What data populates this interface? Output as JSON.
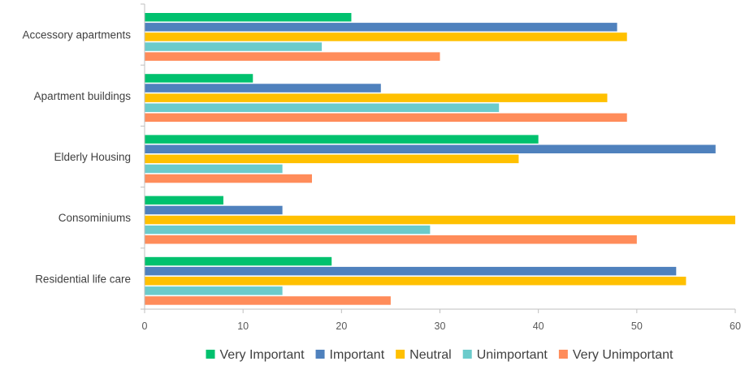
{
  "chart_data": {
    "type": "bar",
    "orientation": "horizontal",
    "title": "",
    "xlabel": "",
    "ylabel": "",
    "categories": [
      "Accessory apartments",
      "Apartment buildings",
      "Elderly Housing",
      "Consominiums",
      "Residential life care"
    ],
    "series": [
      {
        "name": "Very Important",
        "color": "#00C16E",
        "values": [
          21,
          11,
          40,
          8,
          19
        ]
      },
      {
        "name": "Important",
        "color": "#4F81BD",
        "values": [
          48,
          24,
          58,
          14,
          54
        ]
      },
      {
        "name": "Neutral",
        "color": "#FFC000",
        "values": [
          49,
          47,
          38,
          60,
          55
        ]
      },
      {
        "name": "Unimportant",
        "color": "#6BCBCB",
        "values": [
          18,
          36,
          14,
          29,
          14
        ]
      },
      {
        "name": "Very Unimportant",
        "color": "#FF8C5A",
        "values": [
          30,
          49,
          17,
          50,
          25
        ]
      }
    ],
    "xlim": [
      0,
      60
    ],
    "xticks": [
      "0",
      "10",
      "20",
      "30",
      "40",
      "50",
      "60"
    ],
    "grid": false,
    "legend_position": "bottom"
  }
}
